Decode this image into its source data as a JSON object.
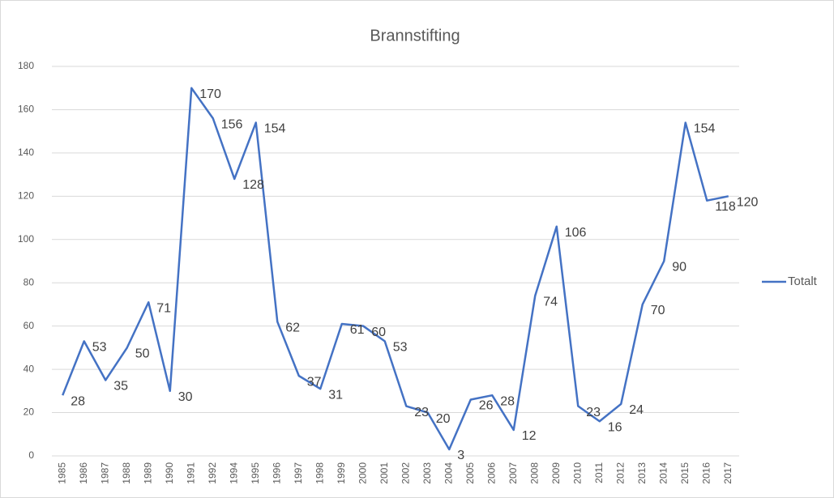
{
  "chart_data": {
    "type": "line",
    "title": "Brannstifting",
    "categories": [
      "1985",
      "1986",
      "1987",
      "1988",
      "1989",
      "1990",
      "1991",
      "1992",
      "1994",
      "1995",
      "1996",
      "1997",
      "1998",
      "1999",
      "2000",
      "2001",
      "2002",
      "2003",
      "2004",
      "2005",
      "2006",
      "2007",
      "2008",
      "2009",
      "2010",
      "2011",
      "2012",
      "2013",
      "2014",
      "2015",
      "2016",
      "2017"
    ],
    "series": [
      {
        "name": "Totalt",
        "color": "#4472c4",
        "values": [
          28,
          53,
          35,
          50,
          71,
          30,
          170,
          156,
          128,
          154,
          62,
          37,
          31,
          61,
          60,
          53,
          23,
          20,
          3,
          26,
          28,
          12,
          74,
          106,
          23,
          16,
          24,
          70,
          90,
          154,
          118,
          120
        ]
      }
    ],
    "ylim": [
      0,
      180
    ],
    "yticks": [
      0,
      20,
      40,
      60,
      80,
      100,
      120,
      140,
      160,
      180
    ],
    "grid": true,
    "legend": "right"
  }
}
